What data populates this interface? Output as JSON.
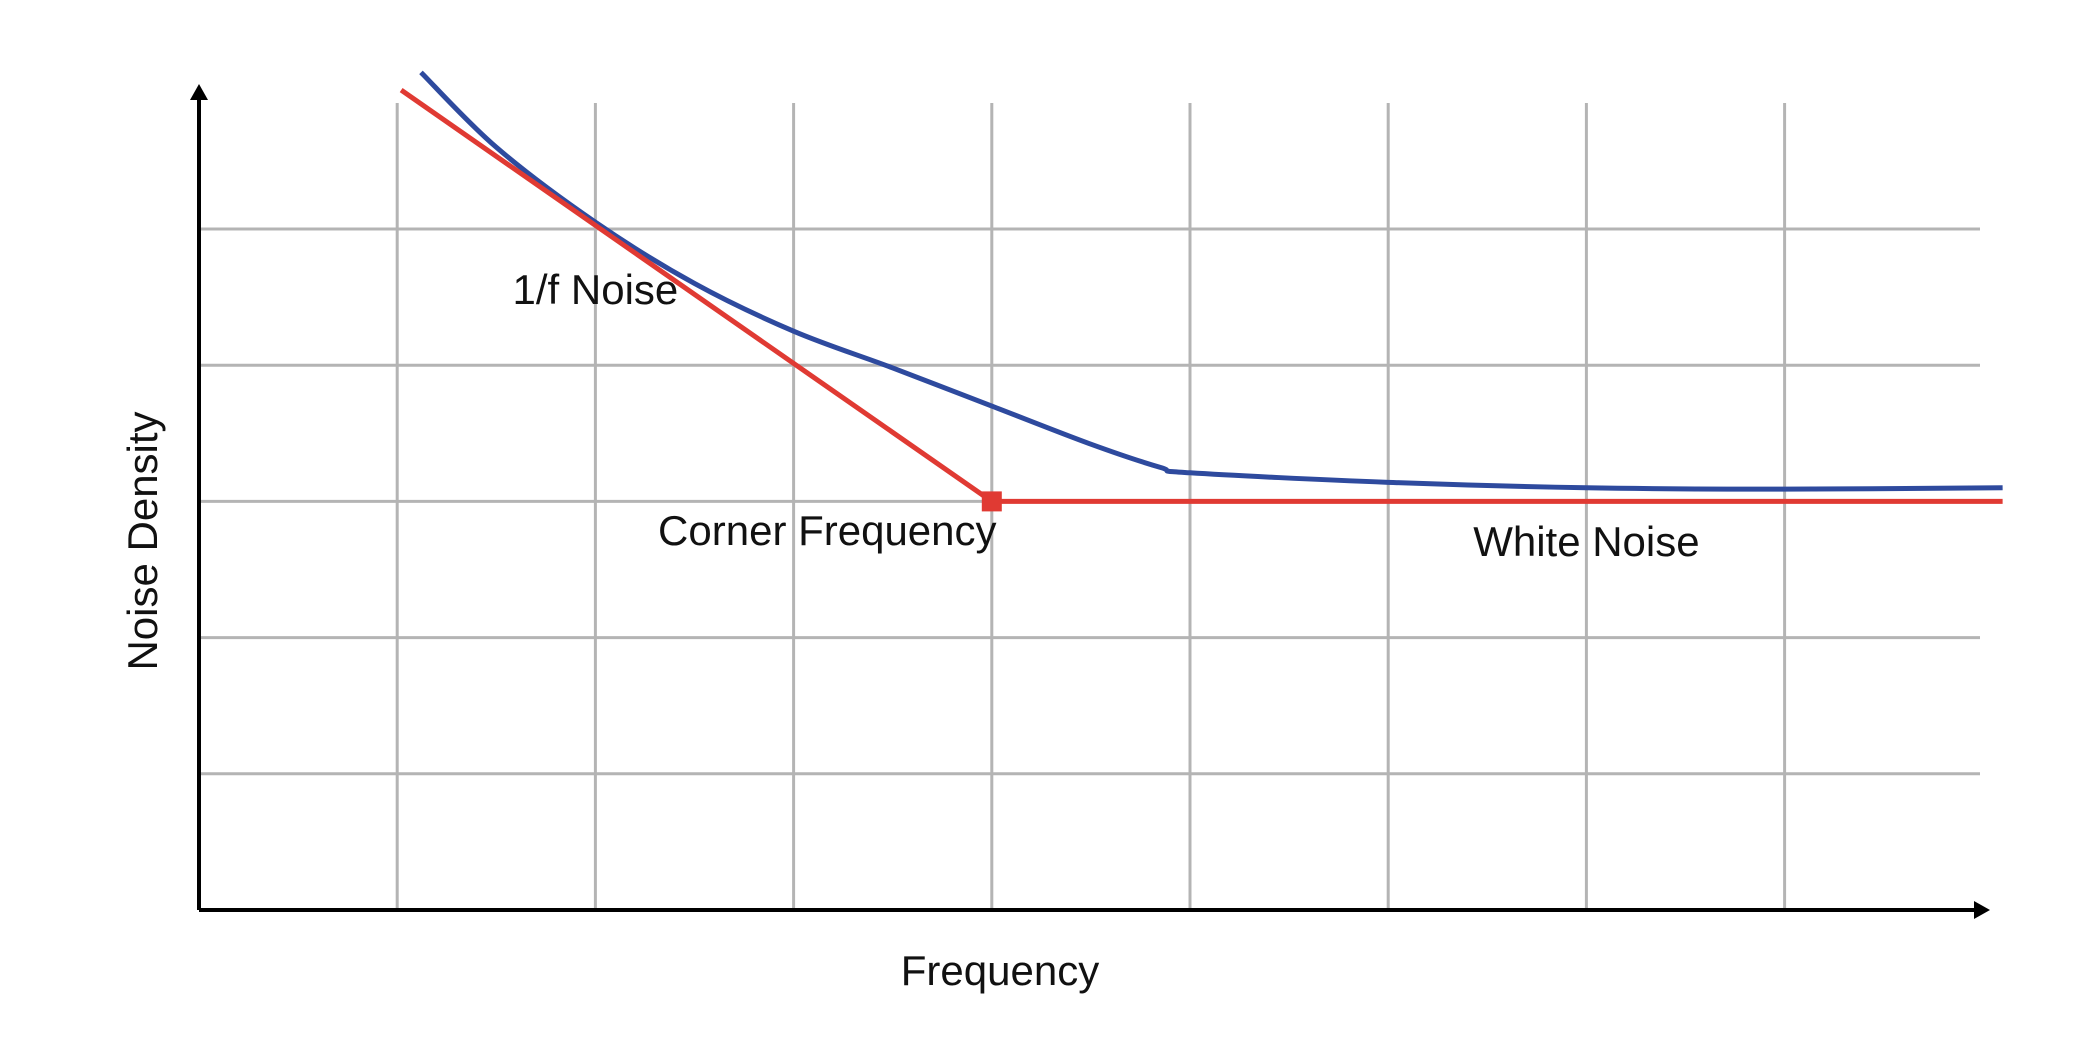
{
  "chart_data": {
    "type": "line",
    "title": "",
    "xlabel": "Frequency",
    "ylabel": "Noise Density",
    "xlim": [
      0,
      9.2
    ],
    "ylim": [
      0,
      6
    ],
    "grid": true,
    "x_ticks": [
      1,
      2,
      3,
      4,
      5,
      6,
      7,
      8
    ],
    "y_ticks": [
      1,
      2,
      3,
      4,
      5
    ],
    "series": [
      {
        "color": "#2e4a9e",
        "points": [
          [
            1.12,
            6.15
          ],
          [
            1.5,
            5.6
          ],
          [
            2.0,
            5.05
          ],
          [
            2.5,
            4.6
          ],
          [
            3.0,
            4.25
          ],
          [
            3.5,
            3.98
          ],
          [
            4.0,
            3.7
          ],
          [
            4.5,
            3.42
          ],
          [
            4.85,
            3.25
          ],
          [
            5.0,
            3.21
          ],
          [
            6.0,
            3.14
          ],
          [
            7.0,
            3.1
          ],
          [
            8.0,
            3.09
          ],
          [
            9.1,
            3.1
          ]
        ]
      },
      {
        "color": "#e03a33",
        "points": [
          [
            1.02,
            6.02
          ],
          [
            4.0,
            3.0
          ],
          [
            9.1,
            3.0
          ]
        ]
      }
    ],
    "marker": {
      "x": 4.0,
      "y": 3.0,
      "color": "#e03a33"
    },
    "annotations": [
      {
        "text": "1/f Noise",
        "x": 2.0,
        "y": 4.45
      },
      {
        "text": "Corner Frequency",
        "x": 3.17,
        "y": 2.68
      },
      {
        "text": "White Noise",
        "x": 7.0,
        "y": 2.6
      }
    ]
  }
}
